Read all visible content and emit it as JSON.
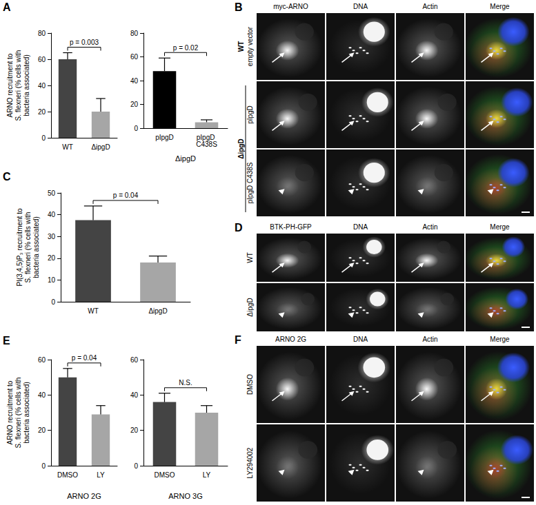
{
  "chart_data": [
    {
      "panel": "A",
      "type": "bar",
      "ylabel": "ARNO recruitment to\nS. flexneri (% cells with\nbacteria associated)",
      "categories": [
        "WT",
        "ΔipgD"
      ],
      "values": [
        60,
        20
      ],
      "errors": [
        5,
        10
      ],
      "colors": [
        "#444444",
        "#a6a6a6"
      ],
      "ylim": [
        0,
        80
      ],
      "yticks": [
        0,
        20,
        40,
        60,
        80
      ],
      "annotation": "p = 0.003",
      "grid": false
    },
    {
      "type": "bar",
      "xlabel": "ΔipgD",
      "categories": [
        "pIpgD",
        "pIpgD C438S"
      ],
      "values": [
        48,
        5
      ],
      "errors": [
        11,
        2
      ],
      "colors": [
        "#000000",
        "#a6a6a6"
      ],
      "ylim": [
        0,
        80
      ],
      "yticks": [
        0,
        20,
        40,
        60,
        80
      ],
      "annotation": "p = 0.02",
      "grid": false
    },
    {
      "panel": "C",
      "type": "bar",
      "ylabel": "PI(3,4,5)P₃ recruitment to\nS. flexneri (% cells with\nbacteria associated)",
      "categories": [
        "WT",
        "ΔipgD"
      ],
      "values": [
        37.5,
        18
      ],
      "errors": [
        6.5,
        3
      ],
      "colors": [
        "#444444",
        "#a6a6a6"
      ],
      "ylim": [
        0,
        50
      ],
      "yticks": [
        0,
        10,
        20,
        30,
        40,
        50
      ],
      "annotation": "p = 0.04",
      "grid": false
    },
    {
      "panel": "E",
      "type": "bar",
      "ylabel": "ARNO recruitment to\nS. flexneri (% cells with\nbacteria associated)",
      "xlabel": "ARNO 2G",
      "categories": [
        "DMSO",
        "LY"
      ],
      "values": [
        50,
        29
      ],
      "errors": [
        5,
        5
      ],
      "colors": [
        "#444444",
        "#a6a6a6"
      ],
      "ylim": [
        0,
        60
      ],
      "yticks": [
        0,
        20,
        40,
        60
      ],
      "annotation": "p = 0.04",
      "grid": false
    },
    {
      "type": "bar",
      "xlabel": "ARNO 3G",
      "categories": [
        "DMSO",
        "LY"
      ],
      "values": [
        36,
        30
      ],
      "errors": [
        5,
        4
      ],
      "colors": [
        "#444444",
        "#a6a6a6"
      ],
      "ylim": [
        0,
        60
      ],
      "yticks": [
        0,
        20,
        40,
        60
      ],
      "annotation": "N.S.",
      "grid": false
    }
  ],
  "micrographs": [
    {
      "panel": "B",
      "columns": [
        "myc-ARNO",
        "DNA",
        "Actin",
        "Merge"
      ],
      "rows": [
        {
          "group": "WT",
          "label": "empty vector",
          "marker": "arrow"
        },
        {
          "group": "ΔipgD",
          "label": "pIpgD",
          "marker": "arrow"
        },
        {
          "group": "ΔipgD",
          "label": "pIpgD C438S",
          "marker": "arrowhead"
        }
      ]
    },
    {
      "panel": "D",
      "columns": [
        "BTK-PH-GFP",
        "DNA",
        "Actin",
        "Merge"
      ],
      "rows": [
        {
          "label": "WT",
          "marker": "arrow"
        },
        {
          "label": "ΔipgD",
          "marker": "arrowhead"
        }
      ]
    },
    {
      "panel": "F",
      "columns": [
        "ARNO 2G",
        "DNA",
        "Actin",
        "Merge"
      ],
      "rows": [
        {
          "label": "DMSO",
          "marker": "arrow"
        },
        {
          "label": "LY294002",
          "marker": "arrowhead"
        }
      ]
    }
  ]
}
